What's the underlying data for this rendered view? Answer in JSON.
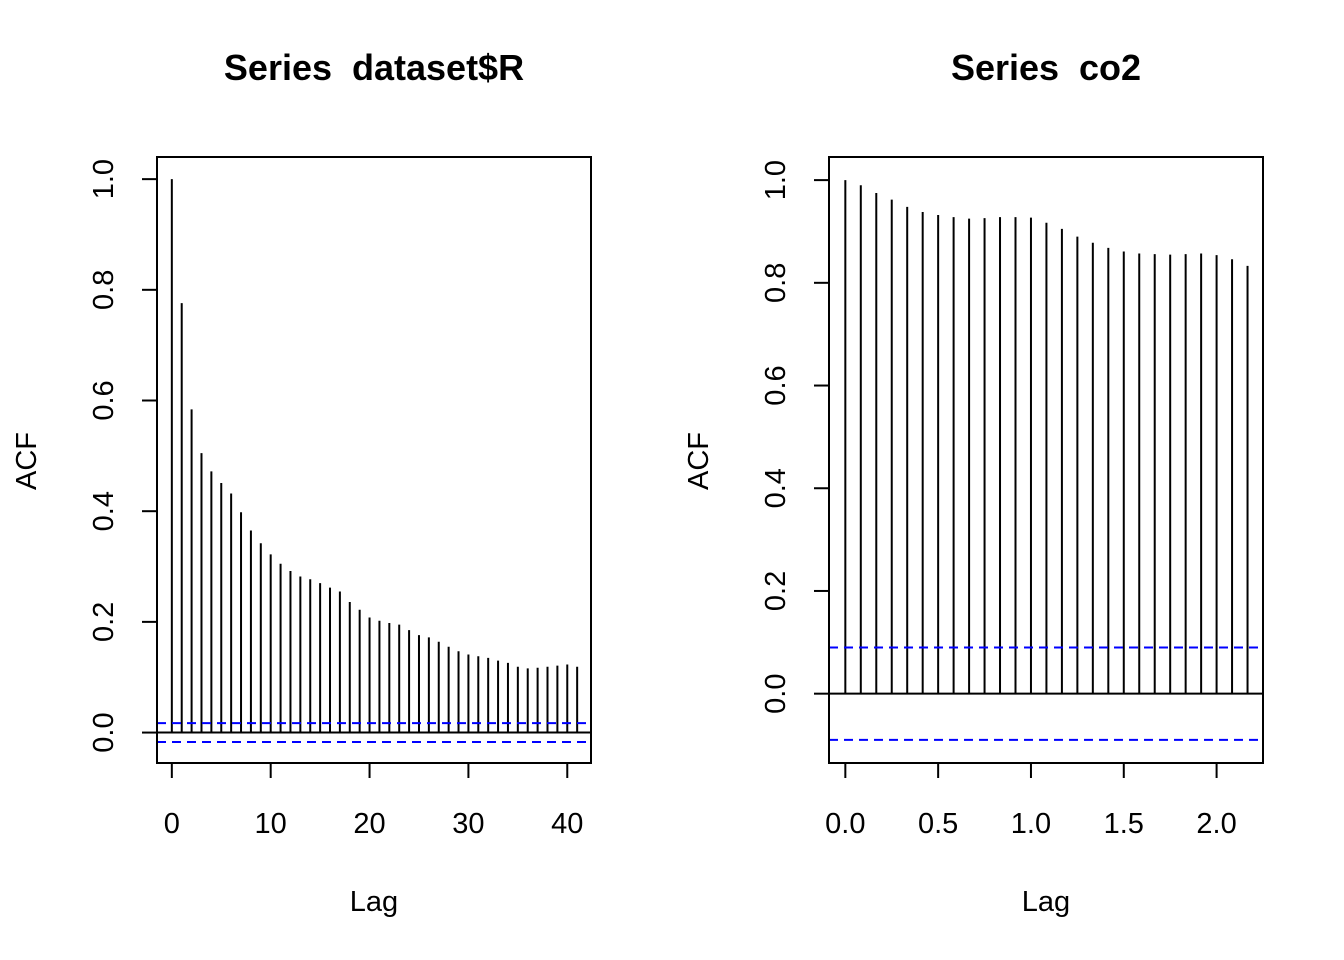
{
  "chart_data": [
    {
      "type": "bar",
      "title": "Series  dataset$R",
      "xlabel": "Lag",
      "ylabel": "ACF",
      "xlim": [
        -1.5,
        42.4
      ],
      "ylim": [
        -0.055,
        1.04
      ],
      "xticks": [
        0,
        10,
        20,
        30,
        40
      ],
      "xtick_labels": [
        "0",
        "10",
        "20",
        "30",
        "40"
      ],
      "yticks": [
        0.0,
        0.2,
        0.4,
        0.6,
        0.8,
        1.0
      ],
      "ytick_labels": [
        "0.0",
        "0.2",
        "0.4",
        "0.6",
        "0.8",
        "1.0"
      ],
      "lags": [
        0,
        1,
        2,
        3,
        4,
        5,
        6,
        7,
        8,
        9,
        10,
        11,
        12,
        13,
        14,
        15,
        16,
        17,
        18,
        19,
        20,
        21,
        22,
        23,
        24,
        25,
        26,
        27,
        28,
        29,
        30,
        31,
        32,
        33,
        34,
        35,
        36,
        37,
        38,
        39,
        40,
        41
      ],
      "values": [
        1.0,
        0.776,
        0.584,
        0.505,
        0.472,
        0.451,
        0.432,
        0.398,
        0.365,
        0.342,
        0.322,
        0.305,
        0.292,
        0.282,
        0.277,
        0.27,
        0.262,
        0.255,
        0.236,
        0.222,
        0.208,
        0.202,
        0.198,
        0.195,
        0.185,
        0.176,
        0.172,
        0.164,
        0.155,
        0.147,
        0.141,
        0.138,
        0.135,
        0.13,
        0.126,
        0.119,
        0.116,
        0.117,
        0.119,
        0.121,
        0.123,
        0.119
      ],
      "confidence_bound": 0.017,
      "colors": {
        "bars": "#000000",
        "confidence": "#0000ff"
      }
    },
    {
      "type": "bar",
      "title": "Series  co2",
      "xlabel": "Lag",
      "ylabel": "ACF",
      "xlim": [
        -0.088,
        2.25
      ],
      "ylim": [
        -0.135,
        1.045
      ],
      "xticks": [
        0.0,
        0.5,
        1.0,
        1.5,
        2.0
      ],
      "xtick_labels": [
        "0.0",
        "0.5",
        "1.0",
        "1.5",
        "2.0"
      ],
      "yticks": [
        0.0,
        0.2,
        0.4,
        0.6,
        0.8,
        1.0
      ],
      "ytick_labels": [
        "0.0",
        "0.2",
        "0.4",
        "0.6",
        "0.8",
        "1.0"
      ],
      "lags": [
        0.0,
        0.0833,
        0.1667,
        0.25,
        0.3333,
        0.4167,
        0.5,
        0.5833,
        0.6667,
        0.75,
        0.8333,
        0.9167,
        1.0,
        1.0833,
        1.1667,
        1.25,
        1.3333,
        1.4167,
        1.5,
        1.5833,
        1.6667,
        1.75,
        1.8333,
        1.9167,
        2.0,
        2.0833,
        2.1667
      ],
      "values": [
        1.0,
        0.99,
        0.975,
        0.962,
        0.948,
        0.938,
        0.932,
        0.928,
        0.925,
        0.926,
        0.928,
        0.928,
        0.927,
        0.917,
        0.905,
        0.89,
        0.878,
        0.868,
        0.861,
        0.857,
        0.856,
        0.855,
        0.856,
        0.857,
        0.854,
        0.846,
        0.833
      ],
      "confidence_bound": 0.09,
      "colors": {
        "bars": "#000000",
        "confidence": "#0000ff"
      }
    }
  ]
}
